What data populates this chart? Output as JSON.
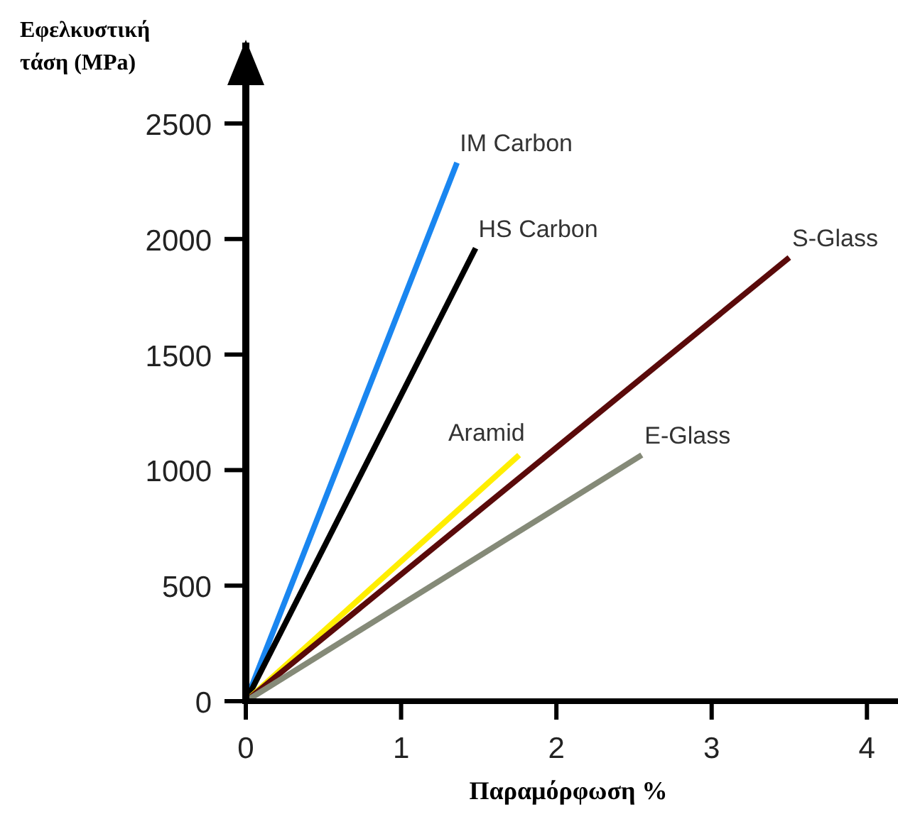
{
  "chart_data": {
    "type": "line",
    "xlabel": "Παραμόρφωση %",
    "ylabel": "Εφελκυστική τάση (MPa)",
    "xlim": [
      0,
      4.2
    ],
    "ylim": [
      0,
      2850
    ],
    "xticks": [
      0,
      1,
      2,
      3,
      4
    ],
    "yticks": [
      0,
      500,
      1000,
      1500,
      2000,
      2500
    ],
    "grid": false,
    "legend": false,
    "marker": "none",
    "line_style": "solid",
    "series": [
      {
        "name": "IM Carbon",
        "color": "#1a86f0",
        "x": [
          0,
          1.36
        ],
        "values": [
          0,
          2330
        ]
      },
      {
        "name": "HS Carbon",
        "color": "#000000",
        "x": [
          0,
          1.48
        ],
        "values": [
          0,
          1960
        ]
      },
      {
        "name": "Aramid",
        "color": "#ffee00",
        "x": [
          0,
          1.76
        ],
        "values": [
          0,
          1065
        ]
      },
      {
        "name": "S-Glass",
        "color": "#5a0a0a",
        "x": [
          0,
          3.5
        ],
        "values": [
          0,
          1920
        ]
      },
      {
        "name": "E-Glass",
        "color": "#858a78",
        "x": [
          0,
          2.55
        ],
        "values": [
          0,
          1065
        ]
      }
    ]
  }
}
